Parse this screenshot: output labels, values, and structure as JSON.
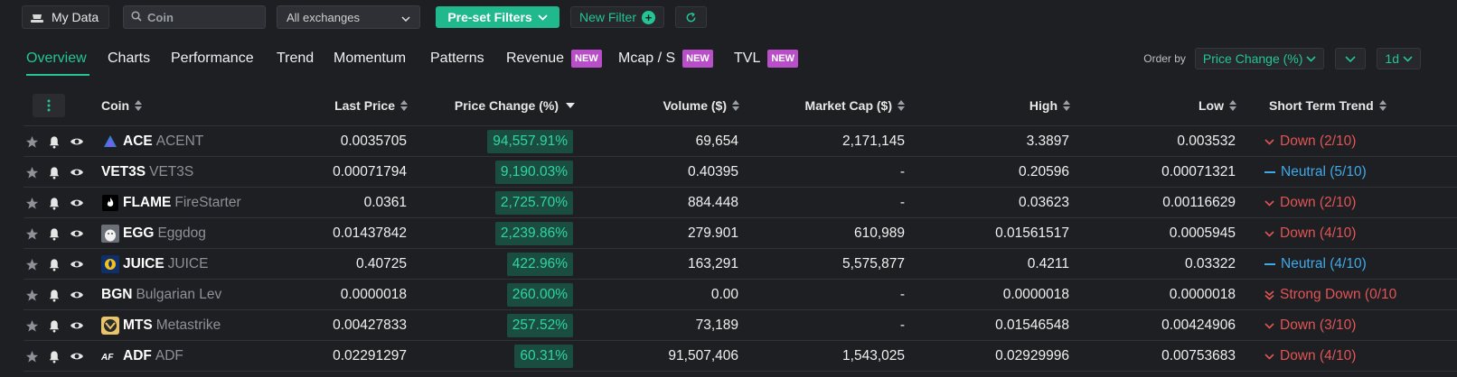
{
  "toolbar": {
    "my_data_label": "My Data",
    "search_placeholder": "Coin",
    "exchange_selected": "All exchanges",
    "preset_label": "Pre-set Filters",
    "new_filter_label": "New Filter"
  },
  "tabs": [
    {
      "label": "Overview",
      "badge": ""
    },
    {
      "label": "Charts",
      "badge": ""
    },
    {
      "label": "Performance",
      "badge": ""
    },
    {
      "label": "Trend",
      "badge": ""
    },
    {
      "label": "Momentum",
      "badge": ""
    },
    {
      "label": "Patterns",
      "badge": ""
    },
    {
      "label": "Revenue",
      "badge": "NEW"
    },
    {
      "label": "Mcap / S",
      "badge": "NEW"
    },
    {
      "label": "TVL",
      "badge": "NEW"
    }
  ],
  "order": {
    "label": "Order by",
    "field": "Price Change (%)",
    "timeframe": "1d"
  },
  "columns": [
    "Coin",
    "Last Price",
    "Price Change (%)",
    "Volume ($)",
    "Market Cap ($)",
    "High",
    "Low",
    "Short Term Trend"
  ],
  "rows": [
    {
      "symbol": "ACE",
      "name": "ACENT",
      "icon": "ace-triangle-icon",
      "last": "0.0035705",
      "change": "94,557.91%",
      "volume": "69,654",
      "mcap": "2,171,145",
      "high": "3.3897",
      "low": "0.003532",
      "trend": "Down (2/10)",
      "trend_type": "down"
    },
    {
      "symbol": "VET3S",
      "name": "VET3S",
      "icon": "",
      "last": "0.00071794",
      "change": "9,190.03%",
      "volume": "0.40395",
      "mcap": "-",
      "high": "0.20596",
      "low": "0.00071321",
      "trend": "Neutral (5/10)",
      "trend_type": "neutral"
    },
    {
      "symbol": "FLAME",
      "name": "FireStarter",
      "icon": "flame-icon",
      "last": "0.0361",
      "change": "2,725.70%",
      "volume": "884.448",
      "mcap": "-",
      "high": "0.03623",
      "low": "0.00116629",
      "trend": "Down (2/10)",
      "trend_type": "down"
    },
    {
      "symbol": "EGG",
      "name": "Eggdog",
      "icon": "eggdog-icon",
      "last": "0.01437842",
      "change": "2,239.86%",
      "volume": "279.901",
      "mcap": "610,989",
      "high": "0.01561517",
      "low": "0.0005945",
      "trend": "Down (4/10)",
      "trend_type": "down"
    },
    {
      "symbol": "JUICE",
      "name": "JUICE",
      "icon": "juice-icon",
      "last": "0.40725",
      "change": "422.96%",
      "volume": "163,291",
      "mcap": "5,575,877",
      "high": "0.4211",
      "low": "0.03322",
      "trend": "Neutral (4/10)",
      "trend_type": "neutral"
    },
    {
      "symbol": "BGN",
      "name": "Bulgarian Lev",
      "icon": "",
      "last": "0.0000018",
      "change": "260.00%",
      "volume": "0.00",
      "mcap": "-",
      "high": "0.0000018",
      "low": "0.0000018",
      "trend": "Strong Down (0/10",
      "trend_type": "strong-down"
    },
    {
      "symbol": "MTS",
      "name": "Metastrike",
      "icon": "metastrike-icon",
      "last": "0.00427833",
      "change": "257.52%",
      "volume": "73,189",
      "mcap": "-",
      "high": "0.01546548",
      "low": "0.00424906",
      "trend": "Down (3/10)",
      "trend_type": "down"
    },
    {
      "symbol": "ADF",
      "name": "ADF",
      "icon": "adf-icon",
      "last": "0.02291297",
      "change": "60.31%",
      "volume": "91,507,406",
      "mcap": "1,543,025",
      "high": "0.02929996",
      "low": "0.00753683",
      "trend": "Down (4/10)",
      "trend_type": "down"
    }
  ],
  "colors": {
    "accent": "#23c596",
    "down": "#e25455",
    "neutral": "#3fa9e8",
    "badge": "#b84ec8"
  }
}
